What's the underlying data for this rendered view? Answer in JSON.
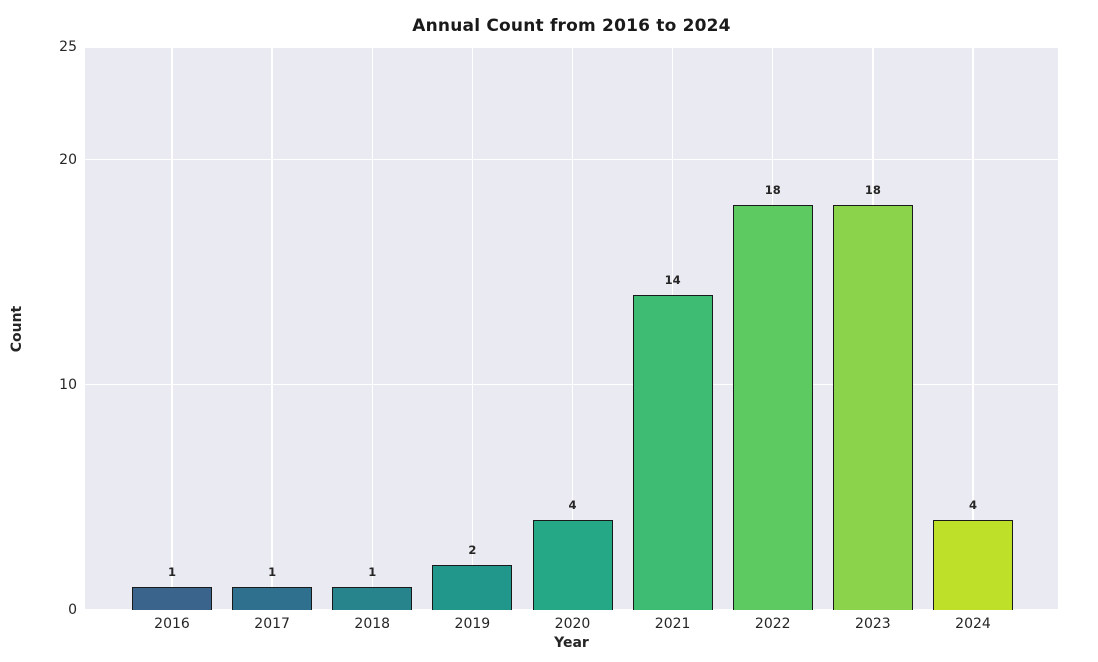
{
  "figure": {
    "background_color": "#ffffff",
    "plot_background_color": "#eaeaf2",
    "grid_color": "#ffffff",
    "text_color": "#262626",
    "bar_edge_color": "#1a1a1a"
  },
  "chart_data": {
    "type": "bar",
    "title": "Annual Count from 2016 to 2024",
    "xlabel": "Year",
    "ylabel": "Count",
    "categories": [
      "2016",
      "2017",
      "2018",
      "2019",
      "2020",
      "2021",
      "2022",
      "2023",
      "2024"
    ],
    "values": [
      1,
      1,
      1,
      2,
      4,
      14,
      18,
      18,
      4
    ],
    "bar_labels": [
      "1",
      "1",
      "1",
      "2",
      "4",
      "14",
      "18",
      "18",
      "4"
    ],
    "bar_colors": [
      "#3a648c",
      "#2e708e",
      "#27838c",
      "#21968b",
      "#24a885",
      "#3fbc73",
      "#5dc961",
      "#8ad34a",
      "#bfe029"
    ],
    "ylim": [
      0,
      25
    ],
    "yticks": [
      0,
      10,
      20,
      25
    ],
    "ytick_labels": [
      "0",
      "10",
      "20",
      "25"
    ],
    "grid": true,
    "legend": null
  }
}
